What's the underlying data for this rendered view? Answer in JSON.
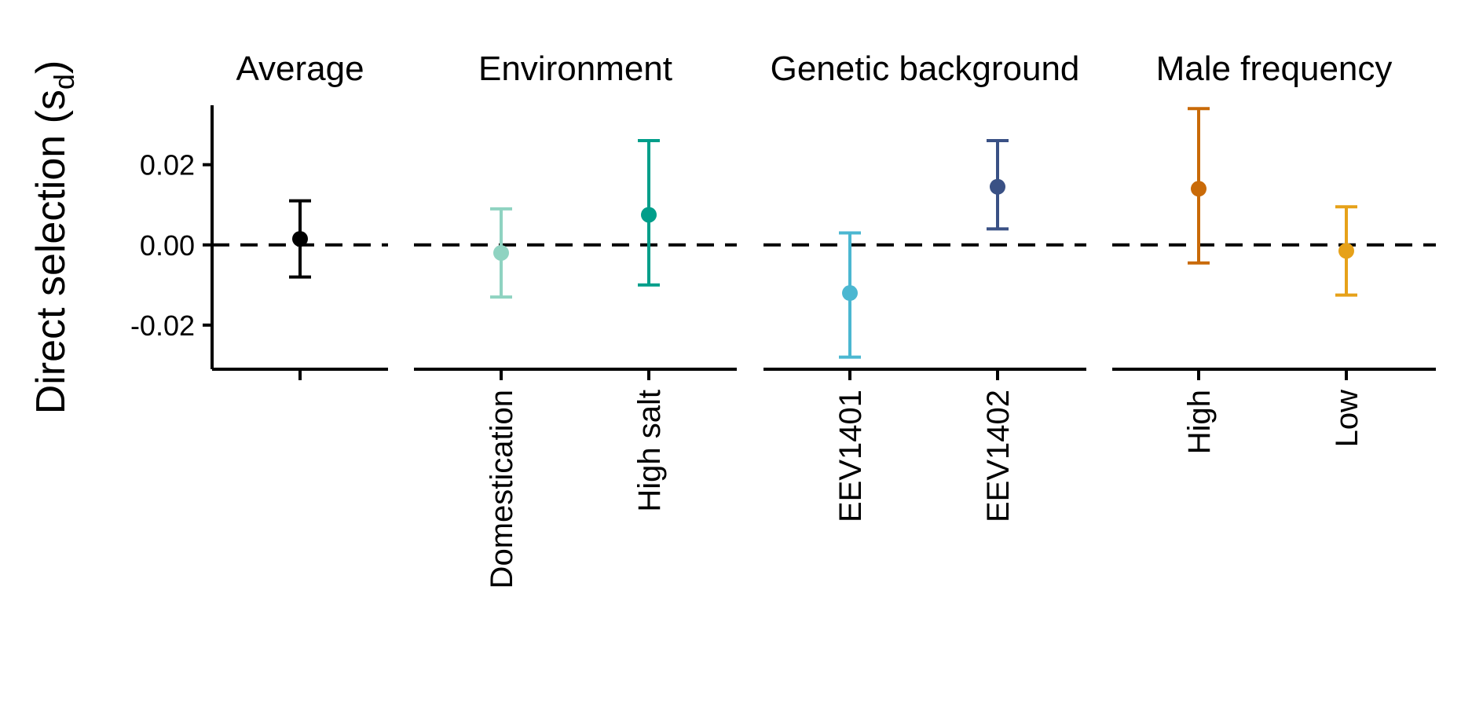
{
  "chart_data": {
    "type": "errorbar",
    "ylabel": "Direct selection (s",
    "ylabel_subscript": "d",
    "ylabel_close": ")",
    "ylim": [
      -0.031,
      0.036
    ],
    "yticks": [
      -0.02,
      0.0,
      0.02
    ],
    "ytick_labels": [
      "-0.02",
      "0.00",
      "0.02"
    ],
    "reference_line": {
      "y": 0,
      "style": "dashed"
    },
    "grid": false,
    "legend": "none",
    "facets": [
      {
        "title": "Average",
        "points": [
          {
            "label": "",
            "estimate": 0.0015,
            "lower": -0.008,
            "upper": 0.011,
            "color": "#000000"
          }
        ]
      },
      {
        "title": "Environment",
        "points": [
          {
            "label": "Domestication",
            "estimate": -0.002,
            "lower": -0.013,
            "upper": 0.009,
            "color": "#8fd3c1"
          },
          {
            "label": "High salt",
            "estimate": 0.0075,
            "lower": -0.01,
            "upper": 0.026,
            "color": "#009e8a"
          }
        ]
      },
      {
        "title": "Genetic background",
        "points": [
          {
            "label": "EEV1401",
            "estimate": -0.012,
            "lower": -0.028,
            "upper": 0.003,
            "color": "#4bb7d1"
          },
          {
            "label": "EEV1402",
            "estimate": 0.0145,
            "lower": 0.004,
            "upper": 0.026,
            "color": "#3a5185"
          }
        ]
      },
      {
        "title": "Male frequency",
        "points": [
          {
            "label": "High",
            "estimate": 0.014,
            "lower": -0.0045,
            "upper": 0.034,
            "color": "#c96a08"
          },
          {
            "label": "Low",
            "estimate": -0.0015,
            "lower": -0.0125,
            "upper": 0.0095,
            "color": "#e6a119"
          }
        ]
      }
    ]
  }
}
